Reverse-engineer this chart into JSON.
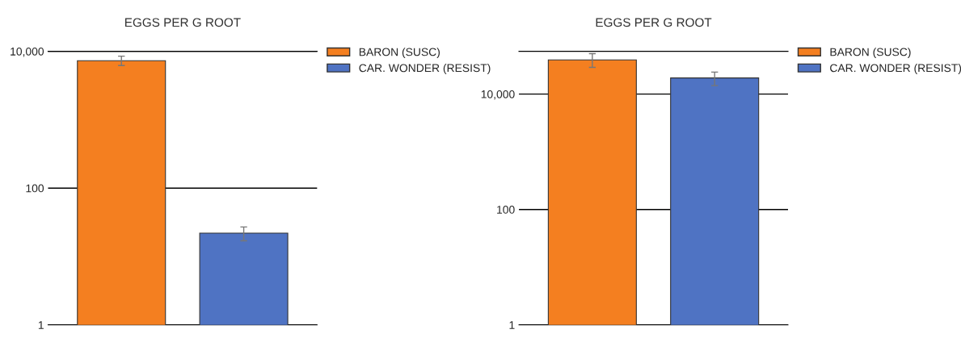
{
  "chart_data": [
    {
      "type": "bar",
      "title": "EGGS PER G ROOT",
      "categories": [
        null,
        null
      ],
      "log": "y",
      "grid": "y",
      "legend": "top right",
      "tick_labels": "y",
      "ylim": [
        1,
        10000
      ],
      "yticks": [
        1,
        100,
        {
          "value": 10000,
          "label": "10,000"
        }
      ],
      "series": [
        {
          "name": "BARON (SUSC)",
          "color": "#f47f20",
          "values": [
            7300,
            null
          ],
          "errors": [
            [
              6200,
              8500
            ],
            null
          ]
        },
        {
          "name": "CAR. WONDER (RESIST)",
          "color": "#4f73c3",
          "values": [
            null,
            22
          ],
          "errors": [
            null,
            [
              17,
              27
            ]
          ]
        }
      ]
    },
    {
      "type": "bar",
      "title": "EGGS PER G ROOT",
      "categories": [
        null,
        null
      ],
      "log": "y",
      "grid": "y",
      "legend": "top right",
      "tick_labels": "y",
      "ylim": [
        1,
        55000
      ],
      "yticks": [
        1,
        100,
        {
          "value": 10000,
          "label": "10,000"
        }
      ],
      "series": [
        {
          "name": "BARON (SUSC)",
          "color": "#f47f20",
          "values": [
            39000,
            null
          ],
          "errors": [
            [
              29000,
              50000
            ],
            null
          ]
        },
        {
          "name": "CAR. WONDER (RESIST)",
          "color": "#4f73c3",
          "values": [
            null,
            19000
          ],
          "errors": [
            null,
            [
              14000,
              24000
            ]
          ]
        }
      ]
    }
  ]
}
